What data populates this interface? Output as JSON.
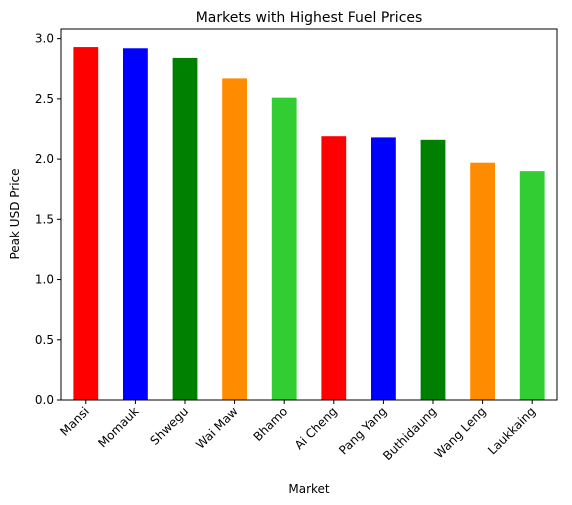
{
  "chart_data": {
    "type": "bar",
    "title": "Markets with Highest Fuel Prices",
    "xlabel": "Market",
    "ylabel": "Peak USD Price",
    "categories": [
      "Mansi",
      "Momauk",
      "Shwegu",
      "Wai Maw",
      "Bhamo",
      "Ai Cheng",
      "Pang Yang",
      "Buthidaung",
      "Wang Leng",
      "Laukkaing"
    ],
    "values": [
      2.93,
      2.92,
      2.84,
      2.67,
      2.51,
      2.19,
      2.18,
      2.16,
      1.97,
      1.9
    ],
    "colors": [
      "#ff0000",
      "#0000ff",
      "#008000",
      "#ff8c00",
      "#32cd32",
      "#ff0000",
      "#0000ff",
      "#008000",
      "#ff8c00",
      "#32cd32"
    ],
    "yticks": [
      "0.0",
      "0.5",
      "1.0",
      "1.5",
      "2.0",
      "2.5",
      "3.0"
    ],
    "ylim": [
      0,
      3.08
    ],
    "grid": false,
    "legend": "none"
  }
}
